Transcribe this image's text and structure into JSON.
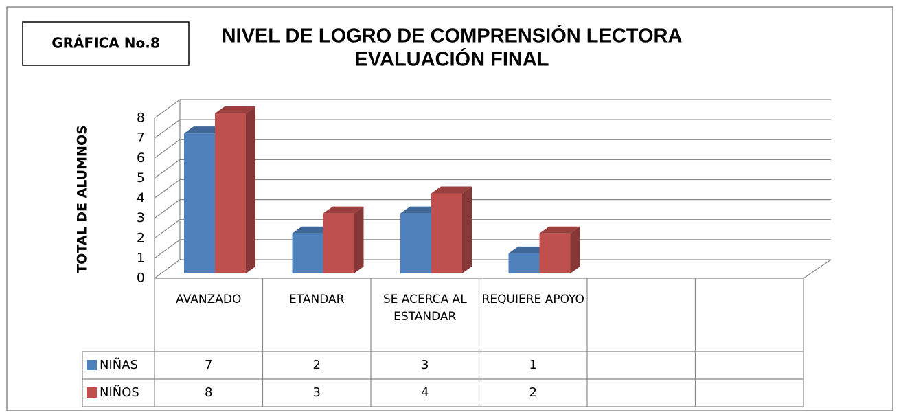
{
  "chart_data": {
    "type": "bar3d",
    "badge": "GRÁFICA  No.8",
    "title": "NIVEL DE LOGRO DE COMPRENSIÓN LECTORA",
    "subtitle": "EVALUACIÓN FINAL",
    "y_label": "TOTAL DE ALUMNOS",
    "categories": [
      "AVANZADO",
      "ETANDAR",
      "SE ACERCA AL ESTANDAR",
      "REQUIERE APOYO",
      null,
      null
    ],
    "series": [
      {
        "name": "NIÑAS",
        "color": "#4f81bd",
        "values": [
          7,
          2,
          3,
          1,
          null,
          null
        ]
      },
      {
        "name": "NIÑOS",
        "color": "#c0504d",
        "values": [
          8,
          3,
          4,
          2,
          null,
          null
        ]
      }
    ],
    "ylim": [
      0,
      8
    ],
    "yticks": [
      0,
      1,
      2,
      3,
      4,
      5,
      6,
      7,
      8
    ],
    "grid": true,
    "data_table": true
  }
}
